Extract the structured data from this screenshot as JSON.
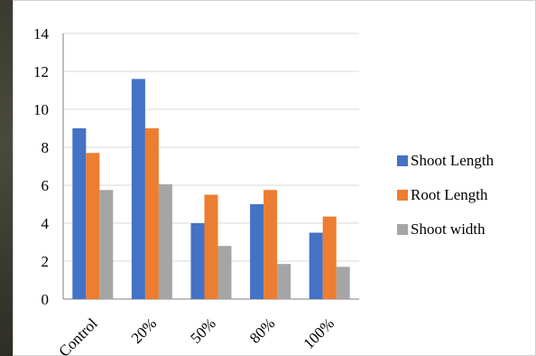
{
  "chart_data": {
    "type": "bar",
    "categories": [
      "Control",
      "20%",
      "50%",
      "80%",
      "100%"
    ],
    "series": [
      {
        "name": "Shoot Length",
        "values": [
          9.0,
          11.6,
          4.0,
          5.0,
          3.5
        ],
        "color": "#4472C4"
      },
      {
        "name": "Root Length",
        "values": [
          7.7,
          9.0,
          5.5,
          5.75,
          4.35
        ],
        "color": "#ED7D31"
      },
      {
        "name": "Shoot width",
        "values": [
          5.75,
          6.05,
          2.8,
          1.85,
          1.7
        ],
        "color": "#A5A5A5"
      }
    ],
    "yticks": [
      "0",
      "2",
      "4",
      "6",
      "8",
      "10",
      "12",
      "14"
    ],
    "ylim": [
      0,
      14
    ],
    "grid": true,
    "legend_position": "right"
  }
}
